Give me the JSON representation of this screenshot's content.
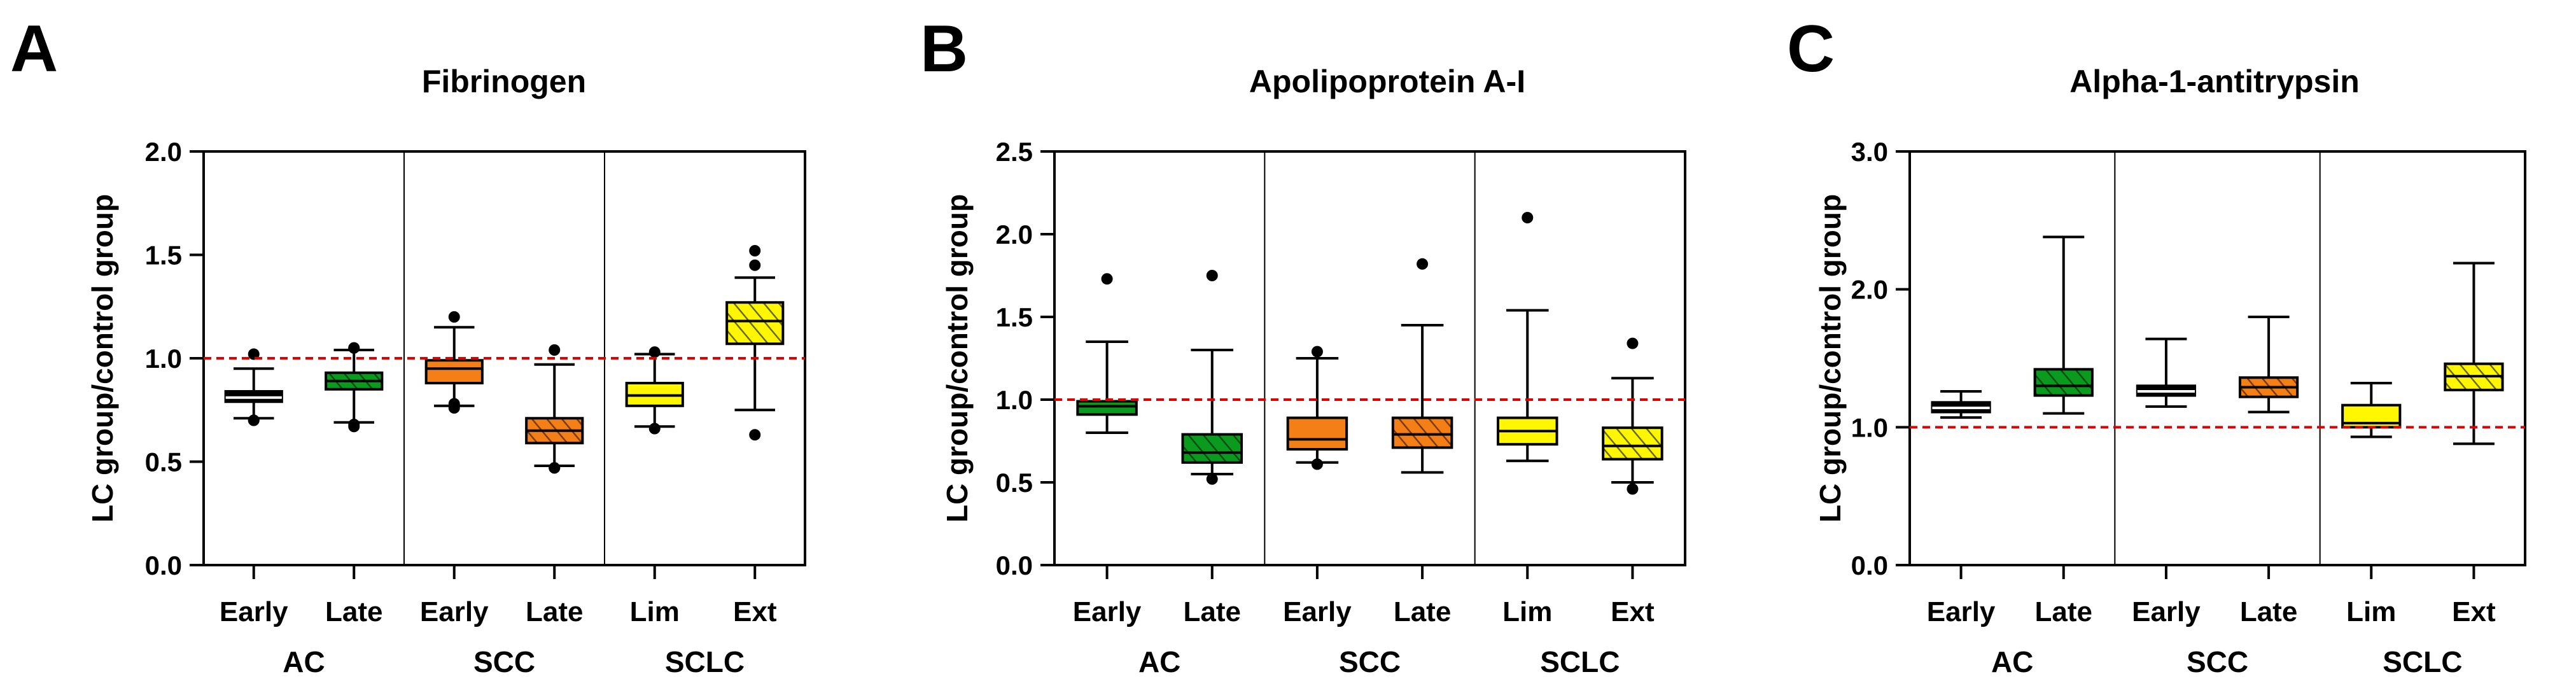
{
  "colors": {
    "black": "#000000",
    "green": "#0a9a1e",
    "orange": "#f57f17",
    "yellow": "#fff700",
    "reference_line": "#e00000",
    "hatch_green": "#054d0e",
    "hatch_orange": "#7a3a00",
    "hatch_yellow": "#6a6a00"
  },
  "chart_data": [
    {
      "type": "box",
      "panel_letter": "A",
      "title": "Fibrinogen",
      "ylabel": "LC group/control group",
      "ylim": [
        0,
        2.0
      ],
      "yticks": [
        "0.0",
        "0.5",
        "1.0",
        "1.5",
        "2.0"
      ],
      "reference_line": 1.0,
      "categories": [
        "Early",
        "Late",
        "Early",
        "Late",
        "Lim",
        "Ext"
      ],
      "groups": [
        "AC",
        "SCC",
        "SCLC"
      ],
      "boxes": [
        {
          "category": "Early",
          "group": "AC",
          "color": "black",
          "hatched": false,
          "whisker_low": 0.71,
          "q1": 0.79,
          "median": 0.81,
          "q3": 0.84,
          "whisker_high": 0.95,
          "outliers": [
            0.7,
            0.7,
            1.02
          ]
        },
        {
          "category": "Late",
          "group": "AC",
          "color": "green",
          "hatched": true,
          "whisker_low": 0.69,
          "q1": 0.85,
          "median": 0.89,
          "q3": 0.93,
          "whisker_high": 1.04,
          "outliers": [
            0.68,
            0.67,
            1.05,
            1.05
          ]
        },
        {
          "category": "Early",
          "group": "SCC",
          "color": "orange",
          "hatched": false,
          "whisker_low": 0.77,
          "q1": 0.88,
          "median": 0.95,
          "q3": 0.99,
          "whisker_high": 1.15,
          "outliers": [
            0.76,
            0.78,
            1.2
          ]
        },
        {
          "category": "Late",
          "group": "SCC",
          "color": "orange",
          "hatched": true,
          "whisker_low": 0.48,
          "q1": 0.59,
          "median": 0.65,
          "q3": 0.71,
          "whisker_high": 0.97,
          "outliers": [
            0.47,
            0.47,
            1.04
          ]
        },
        {
          "category": "Lim",
          "group": "SCLC",
          "color": "yellow",
          "hatched": false,
          "whisker_low": 0.67,
          "q1": 0.77,
          "median": 0.82,
          "q3": 0.88,
          "whisker_high": 1.02,
          "outliers": [
            0.66,
            1.03
          ]
        },
        {
          "category": "Ext",
          "group": "SCLC",
          "color": "yellow",
          "hatched": true,
          "whisker_low": 0.75,
          "q1": 1.07,
          "median": 1.18,
          "q3": 1.27,
          "whisker_high": 1.39,
          "outliers": [
            0.63,
            1.45,
            1.52
          ]
        }
      ]
    },
    {
      "type": "box",
      "panel_letter": "B",
      "title": "Apolipoprotein A-I",
      "ylabel": "LC group/control group",
      "ylim": [
        0,
        2.5
      ],
      "yticks": [
        "0.0",
        "0.5",
        "1.0",
        "1.5",
        "2.0",
        "2.5"
      ],
      "reference_line": 1.0,
      "categories": [
        "Early",
        "Late",
        "Early",
        "Late",
        "Lim",
        "Ext"
      ],
      "groups": [
        "AC",
        "SCC",
        "SCLC"
      ],
      "boxes": [
        {
          "category": "Early",
          "group": "AC",
          "color": "green",
          "hatched": false,
          "whisker_low": 0.8,
          "q1": 0.91,
          "median": 0.96,
          "q3": 0.99,
          "whisker_high": 1.35,
          "outliers": [
            1.73
          ]
        },
        {
          "category": "Late",
          "group": "AC",
          "color": "green",
          "hatched": true,
          "whisker_low": 0.55,
          "q1": 0.62,
          "median": 0.68,
          "q3": 0.79,
          "whisker_high": 1.3,
          "outliers": [
            0.52,
            1.75
          ]
        },
        {
          "category": "Early",
          "group": "SCC",
          "color": "orange",
          "hatched": false,
          "whisker_low": 0.62,
          "q1": 0.7,
          "median": 0.76,
          "q3": 0.89,
          "whisker_high": 1.25,
          "outliers": [
            0.61,
            1.29
          ]
        },
        {
          "category": "Late",
          "group": "SCC",
          "color": "orange",
          "hatched": true,
          "whisker_low": 0.56,
          "q1": 0.71,
          "median": 0.79,
          "q3": 0.89,
          "whisker_high": 1.45,
          "outliers": [
            1.82
          ]
        },
        {
          "category": "Lim",
          "group": "SCLC",
          "color": "yellow",
          "hatched": false,
          "whisker_low": 0.63,
          "q1": 0.73,
          "median": 0.81,
          "q3": 0.89,
          "whisker_high": 1.54,
          "outliers": [
            2.1
          ]
        },
        {
          "category": "Ext",
          "group": "SCLC",
          "color": "yellow",
          "hatched": true,
          "whisker_low": 0.5,
          "q1": 0.64,
          "median": 0.72,
          "q3": 0.83,
          "whisker_high": 1.13,
          "outliers": [
            0.46,
            1.34
          ]
        }
      ]
    },
    {
      "type": "box",
      "panel_letter": "C",
      "title": "Alpha-1-antitrypsin",
      "ylabel": "LC group/control group",
      "ylim": [
        0,
        3.0
      ],
      "yticks": [
        "0.0",
        "1.0",
        "2.0",
        "3.0"
      ],
      "reference_line": 1.0,
      "categories": [
        "Early",
        "Late",
        "Early",
        "Late",
        "Lim",
        "Ext"
      ],
      "groups": [
        "AC",
        "SCC",
        "SCLC"
      ],
      "boxes": [
        {
          "category": "Early",
          "group": "AC",
          "color": "black",
          "hatched": false,
          "whisker_low": 1.07,
          "q1": 1.11,
          "median": 1.14,
          "q3": 1.18,
          "whisker_high": 1.26,
          "outliers": []
        },
        {
          "category": "Late",
          "group": "AC",
          "color": "green",
          "hatched": true,
          "whisker_low": 1.1,
          "q1": 1.23,
          "median": 1.3,
          "q3": 1.42,
          "whisker_high": 2.38,
          "outliers": []
        },
        {
          "category": "Early",
          "group": "SCC",
          "color": "black",
          "hatched": false,
          "whisker_low": 1.15,
          "q1": 1.23,
          "median": 1.26,
          "q3": 1.3,
          "whisker_high": 1.64,
          "outliers": []
        },
        {
          "category": "Late",
          "group": "SCC",
          "color": "orange",
          "hatched": true,
          "whisker_low": 1.11,
          "q1": 1.22,
          "median": 1.29,
          "q3": 1.36,
          "whisker_high": 1.8,
          "outliers": []
        },
        {
          "category": "Lim",
          "group": "SCLC",
          "color": "yellow",
          "hatched": false,
          "whisker_low": 0.93,
          "q1": 1.0,
          "median": 1.03,
          "q3": 1.16,
          "whisker_high": 1.32,
          "outliers": []
        },
        {
          "category": "Ext",
          "group": "SCLC",
          "color": "yellow",
          "hatched": true,
          "whisker_low": 0.88,
          "q1": 1.27,
          "median": 1.37,
          "q3": 1.46,
          "whisker_high": 2.19,
          "outliers": []
        }
      ]
    }
  ]
}
